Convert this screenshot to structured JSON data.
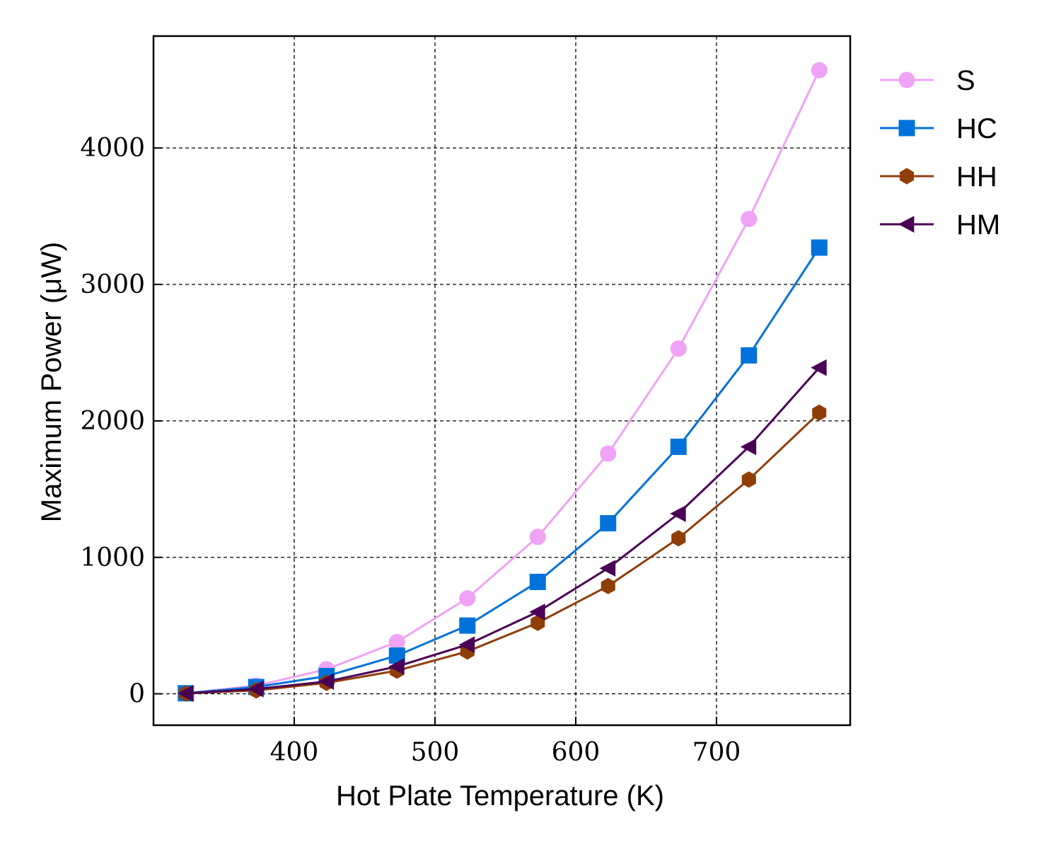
{
  "chart_data": {
    "type": "line",
    "title": "",
    "xlabel": "Hot Plate Temperature (K)",
    "ylabel": "Maximum Power (μW)",
    "xlim": [
      300,
      795
    ],
    "ylim": [
      -230,
      4820
    ],
    "xticks": [
      400,
      500,
      600,
      700
    ],
    "yticks": [
      0,
      1000,
      2000,
      3000,
      4000
    ],
    "grid": true,
    "legend_position": "outside-right",
    "x": [
      323,
      373,
      423,
      473,
      523,
      573,
      623,
      673,
      723,
      773
    ],
    "series": [
      {
        "name": "S",
        "color": "#f0a3f5",
        "marker": "circle",
        "values": [
          5,
          60,
          180,
          380,
          700,
          1150,
          1760,
          2530,
          3480,
          4570
        ]
      },
      {
        "name": "HC",
        "color": "#0072d9",
        "marker": "square",
        "values": [
          4,
          50,
          130,
          280,
          500,
          820,
          1250,
          1810,
          2480,
          3270
        ]
      },
      {
        "name": "HH",
        "color": "#8f3e08",
        "marker": "hexagon",
        "values": [
          2,
          25,
          80,
          170,
          310,
          520,
          790,
          1140,
          1570,
          2060
        ]
      },
      {
        "name": "HM",
        "color": "#4a0055",
        "marker": "triangle-left",
        "values": [
          3,
          35,
          90,
          200,
          360,
          600,
          920,
          1320,
          1810,
          2390
        ]
      }
    ]
  }
}
